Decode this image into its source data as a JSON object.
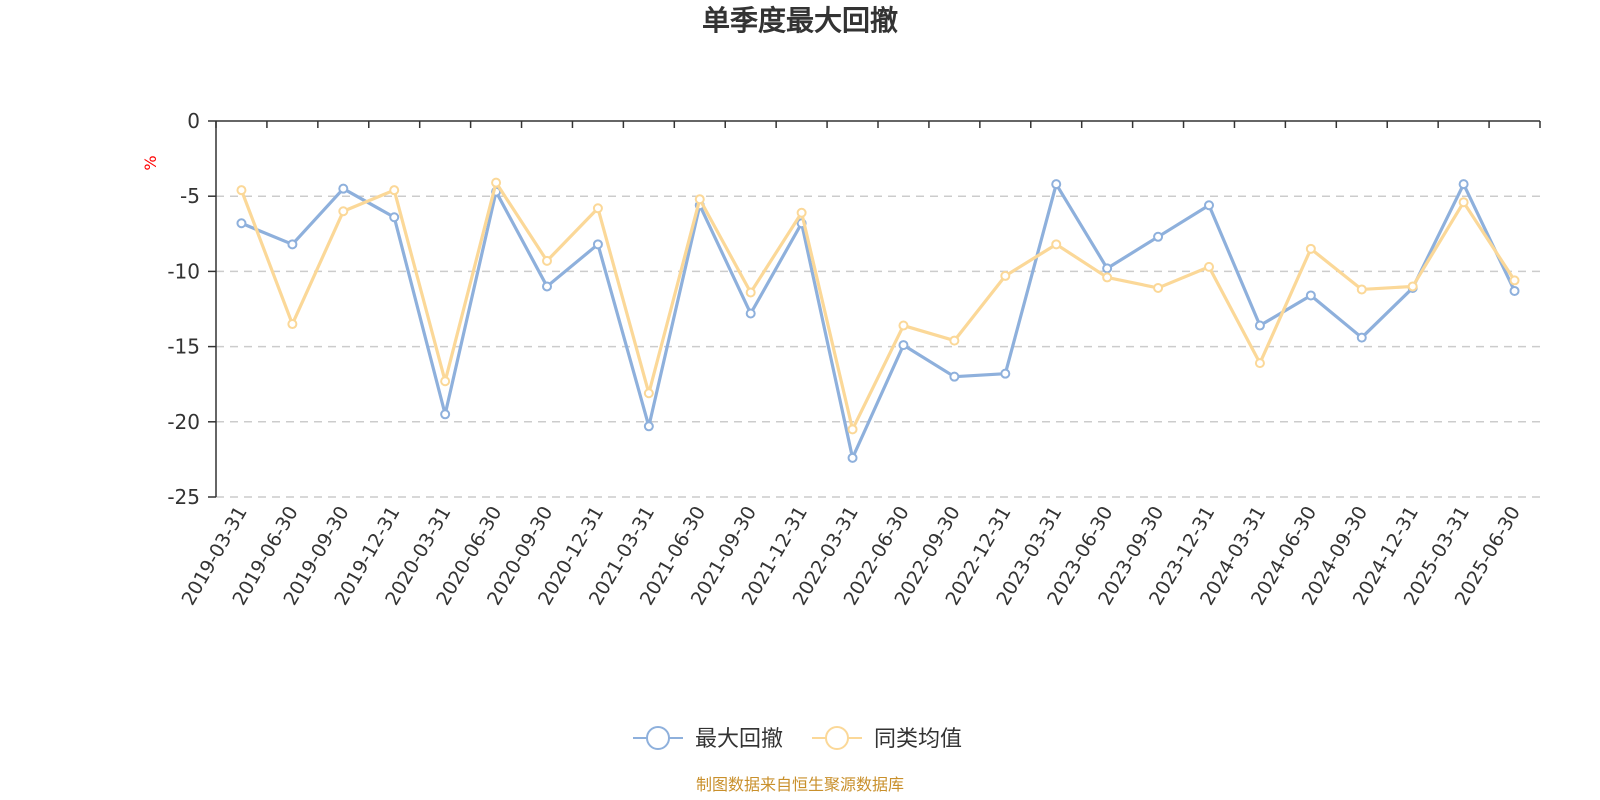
{
  "chart_data": {
    "type": "line",
    "title": "单季度最大回撤",
    "ylabel": "%",
    "ylim": [
      -25,
      0
    ],
    "yticks": [
      0,
      -5,
      -10,
      -15,
      -20,
      -25
    ],
    "grid": true,
    "legend_position": "bottom",
    "source": "制图数据来自恒生聚源数据库",
    "categories": [
      "2019-03-31",
      "2019-06-30",
      "2019-09-30",
      "2019-12-31",
      "2020-03-31",
      "2020-06-30",
      "2020-09-30",
      "2020-12-31",
      "2021-03-31",
      "2021-06-30",
      "2021-09-30",
      "2021-12-31",
      "2022-03-31",
      "2022-06-30",
      "2022-09-30",
      "2022-12-31",
      "2023-03-31",
      "2023-06-30",
      "2023-09-30",
      "2023-12-31",
      "2024-03-31",
      "2024-06-30",
      "2024-09-30",
      "2024-12-31",
      "2025-03-31",
      "2025-06-30"
    ],
    "series": [
      {
        "name": "最大回撤",
        "color": "#8eb0dc",
        "values": [
          -6.8,
          -8.2,
          -4.5,
          -6.4,
          -19.5,
          -4.7,
          -11.0,
          -8.2,
          -20.3,
          -5.6,
          -12.8,
          -6.8,
          -22.4,
          -14.9,
          -17.0,
          -16.8,
          -4.2,
          -9.8,
          -7.7,
          -5.6,
          -13.6,
          -11.6,
          -14.4,
          -11.1,
          -4.2,
          -11.3
        ]
      },
      {
        "name": "同类均值",
        "color": "#fbd898",
        "values": [
          -4.6,
          -13.5,
          -6.0,
          -4.6,
          -17.3,
          -4.1,
          -9.3,
          -5.8,
          -18.1,
          -5.2,
          -11.4,
          -6.1,
          -20.5,
          -13.6,
          -14.6,
          -10.3,
          -8.2,
          -10.4,
          -11.1,
          -9.7,
          -16.1,
          -8.5,
          -11.2,
          -11.0,
          -5.4,
          -10.6
        ]
      }
    ]
  }
}
